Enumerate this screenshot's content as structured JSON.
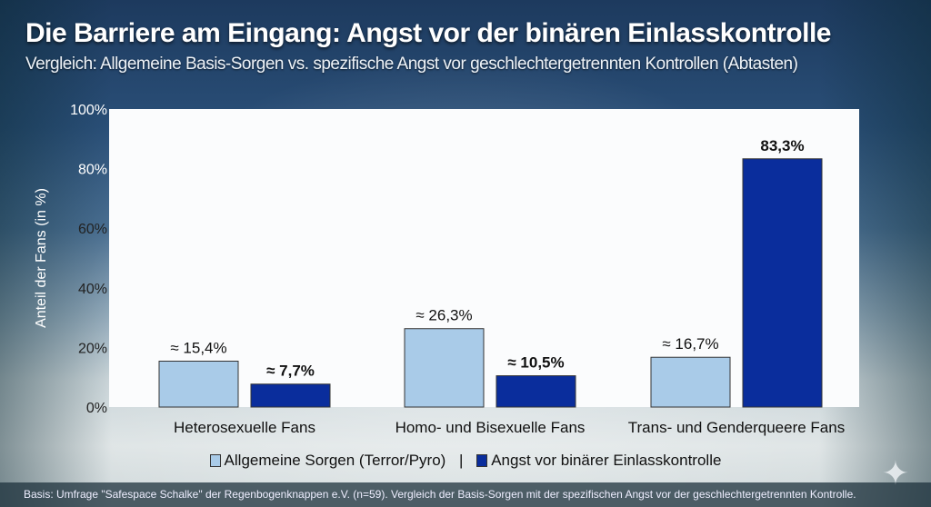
{
  "header": {
    "title": "Die Barriere am Eingang: Angst vor der binären Einlasskontrolle",
    "subtitle": "Vergleich: Allgemeine Basis-Sorgen vs. spezifische Angst vor geschlechtergetrennten Kontrollen (Abtasten)"
  },
  "footer": {
    "text": "Basis: Umfrage \"Safespace Schalke\" der Regenbogenknappen e.V. (n=59). Vergleich der Basis-Sorgen mit der spezifischen Angst vor der geschlechtergetrennten Kontrolle."
  },
  "legend": {
    "separator": "|"
  },
  "colors": {
    "light": "#a9cbe8",
    "dark": "#0a2d9c"
  },
  "chart_data": {
    "type": "bar",
    "title": "Die Barriere am Eingang: Angst vor der binären Einlasskontrolle",
    "ylabel": "Anteil der Fans (in %)",
    "xlabel": "",
    "ylim": [
      0,
      100
    ],
    "yticks": [
      "0%",
      "20%",
      "40%",
      "60%",
      "80%",
      "100%"
    ],
    "grid": false,
    "legend_position": "bottom",
    "categories": [
      "Heterosexuelle Fans",
      "Homo- und Bisexuelle Fans",
      "Trans- und Genderqueere Fans"
    ],
    "series": [
      {
        "name": "Allgemeine Sorgen (Terror/Pyro)",
        "values": [
          15.4,
          26.3,
          16.7
        ],
        "labels": [
          "≈ 15,4%",
          "≈ 26,3%",
          "≈ 16,7%"
        ],
        "color": "#a9cbe8"
      },
      {
        "name": "Angst vor binärer Einlasskontrolle",
        "values": [
          7.7,
          10.5,
          83.3
        ],
        "labels": [
          "≈ 7,7%",
          "≈ 10,5%",
          "83,3%"
        ],
        "color": "#0a2d9c"
      }
    ]
  }
}
